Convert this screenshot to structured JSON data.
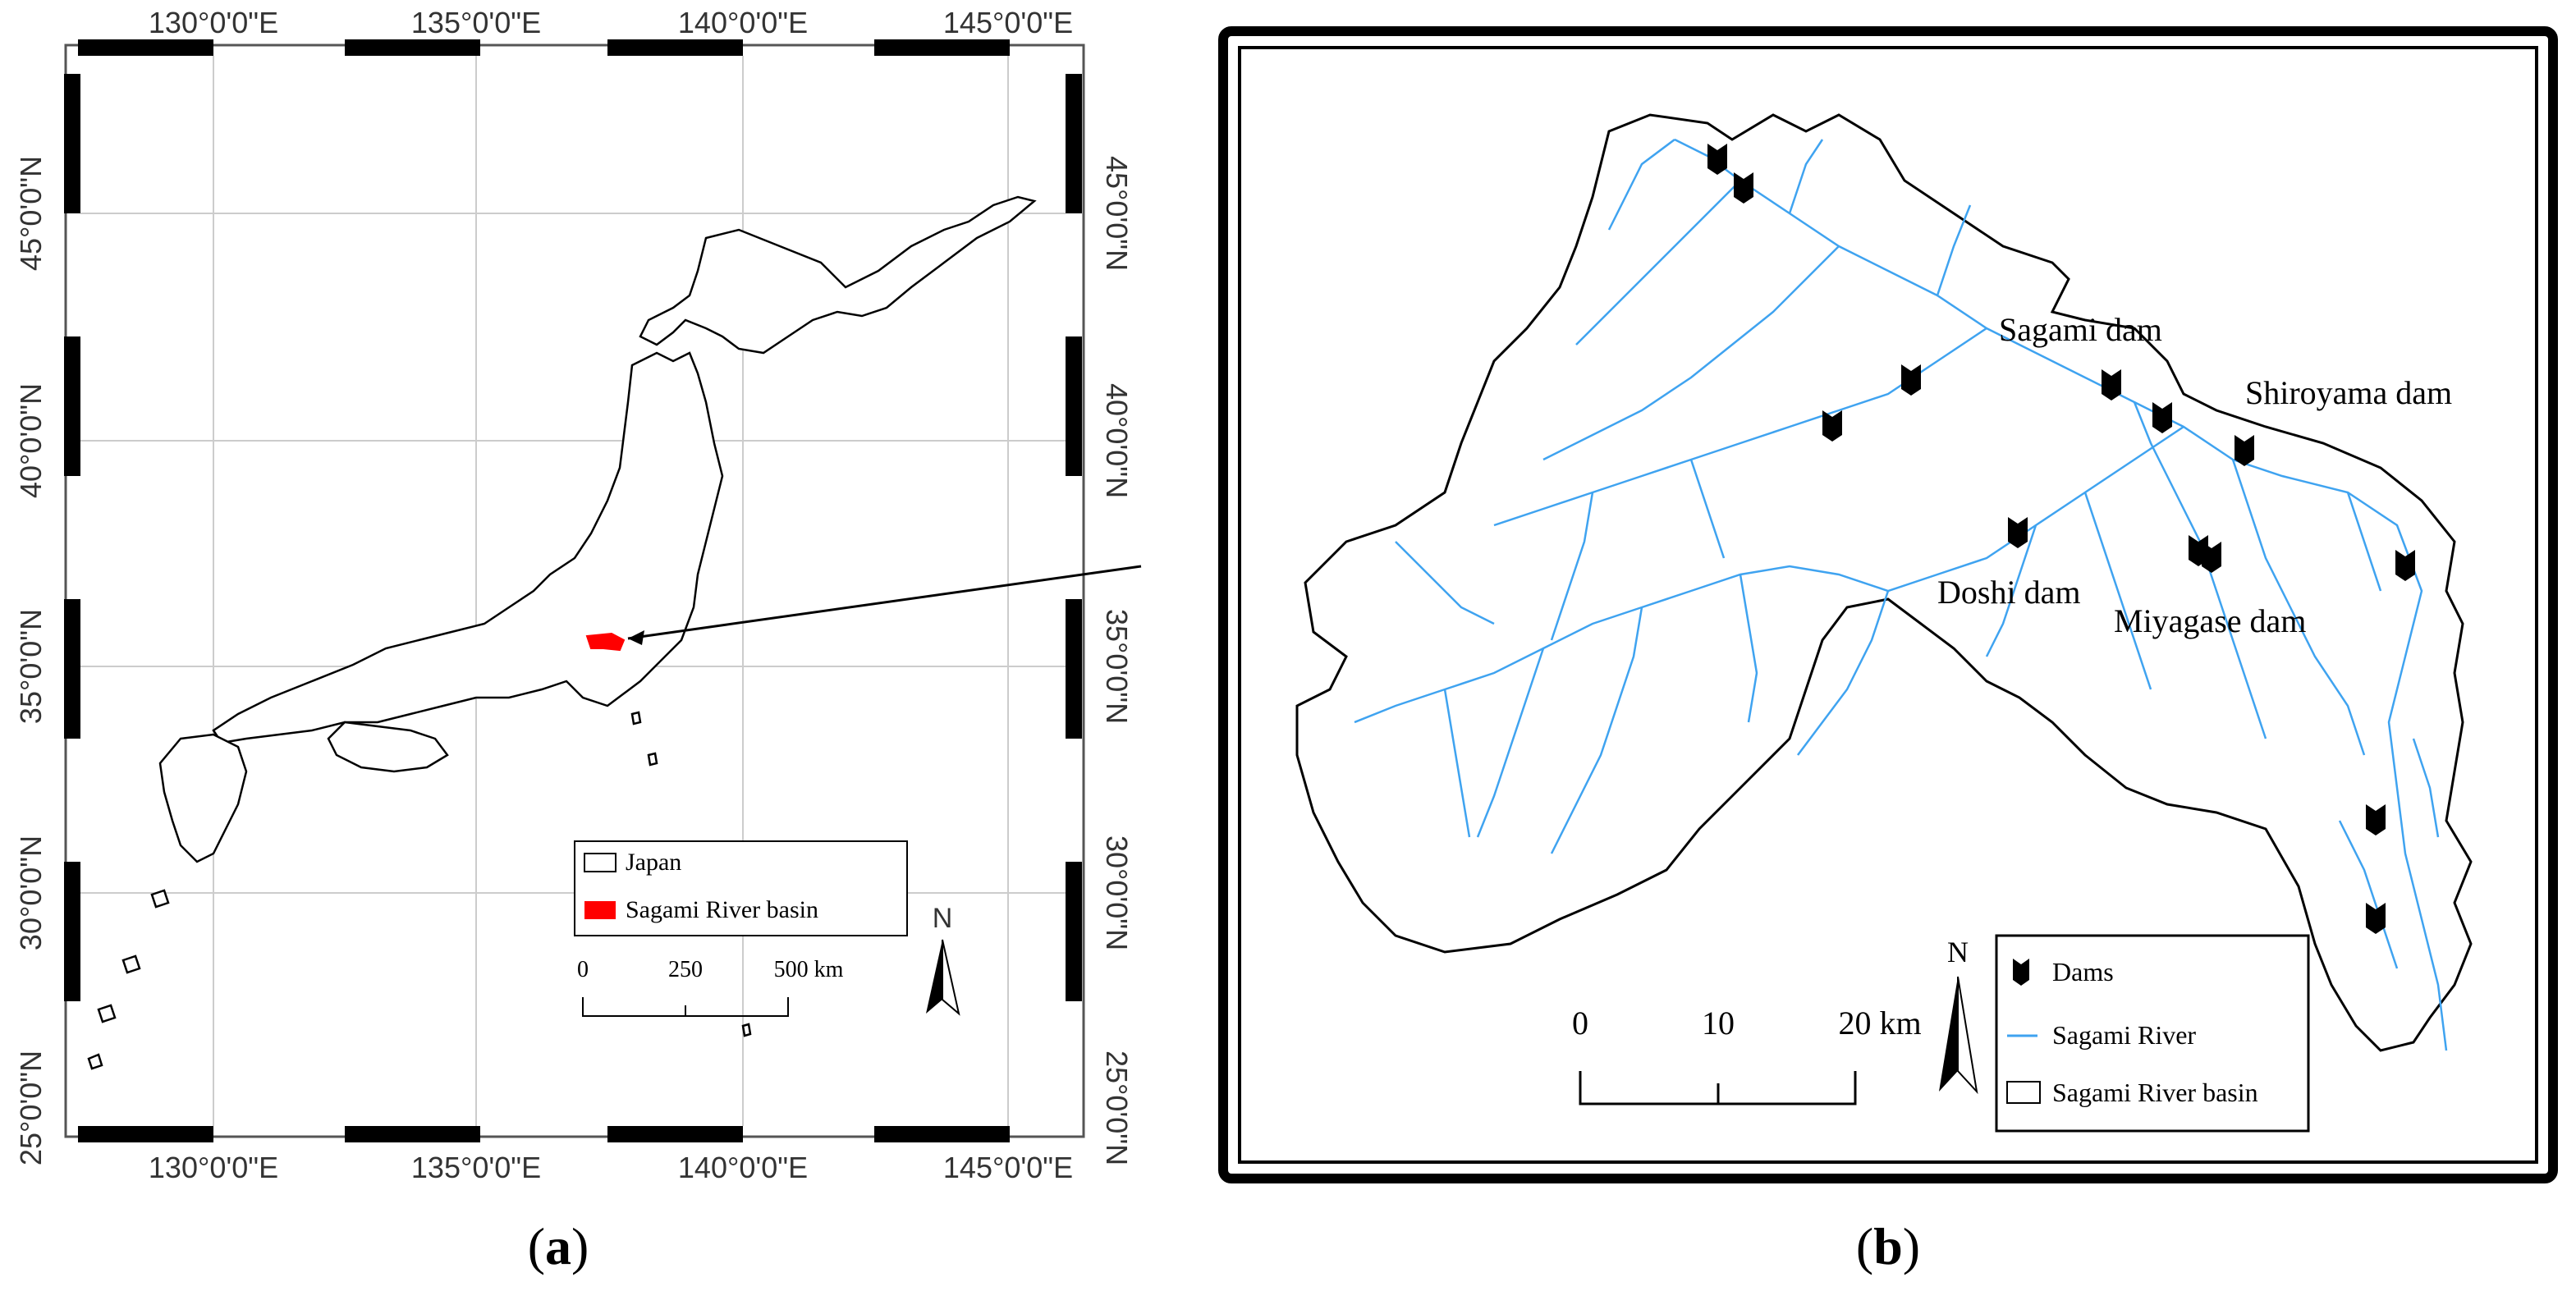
{
  "panel_a": {
    "caption": "a",
    "lon_labels": [
      "130°0'0\"E",
      "135°0'0\"E",
      "140°0'0\"E",
      "145°0'0\"E"
    ],
    "lat_labels": [
      "45°0'0\"N",
      "40°0'0\"N",
      "35°0'0\"N",
      "30°0'0\"N",
      "25°0'0\"N"
    ],
    "legend": {
      "items": [
        {
          "label": "Japan",
          "color": "#ffffff"
        },
        {
          "label": "Sagami River basin",
          "color": "#ff0000"
        }
      ]
    },
    "scale": {
      "ticks": [
        "0",
        "250",
        "500 km"
      ]
    },
    "north": "N",
    "colors": {
      "basin": "#ff0000",
      "graticule": "#cccccc"
    }
  },
  "panel_b": {
    "caption": "b",
    "dam_labels": [
      "Sagami dam",
      "Shiroyama dam",
      "Doshi dam",
      "Miyagase dam"
    ],
    "legend": {
      "items": [
        {
          "label": "Dams",
          "symbol": "dam-icon"
        },
        {
          "label": "Sagami River",
          "color": "#3fa3f0"
        },
        {
          "label": "Sagami River basin",
          "color": "#ffffff"
        }
      ]
    },
    "scale": {
      "ticks": [
        "0",
        "10",
        "20 km"
      ]
    },
    "north": "N",
    "colors": {
      "river": "#3fa3f0",
      "frame": "#000000"
    }
  }
}
